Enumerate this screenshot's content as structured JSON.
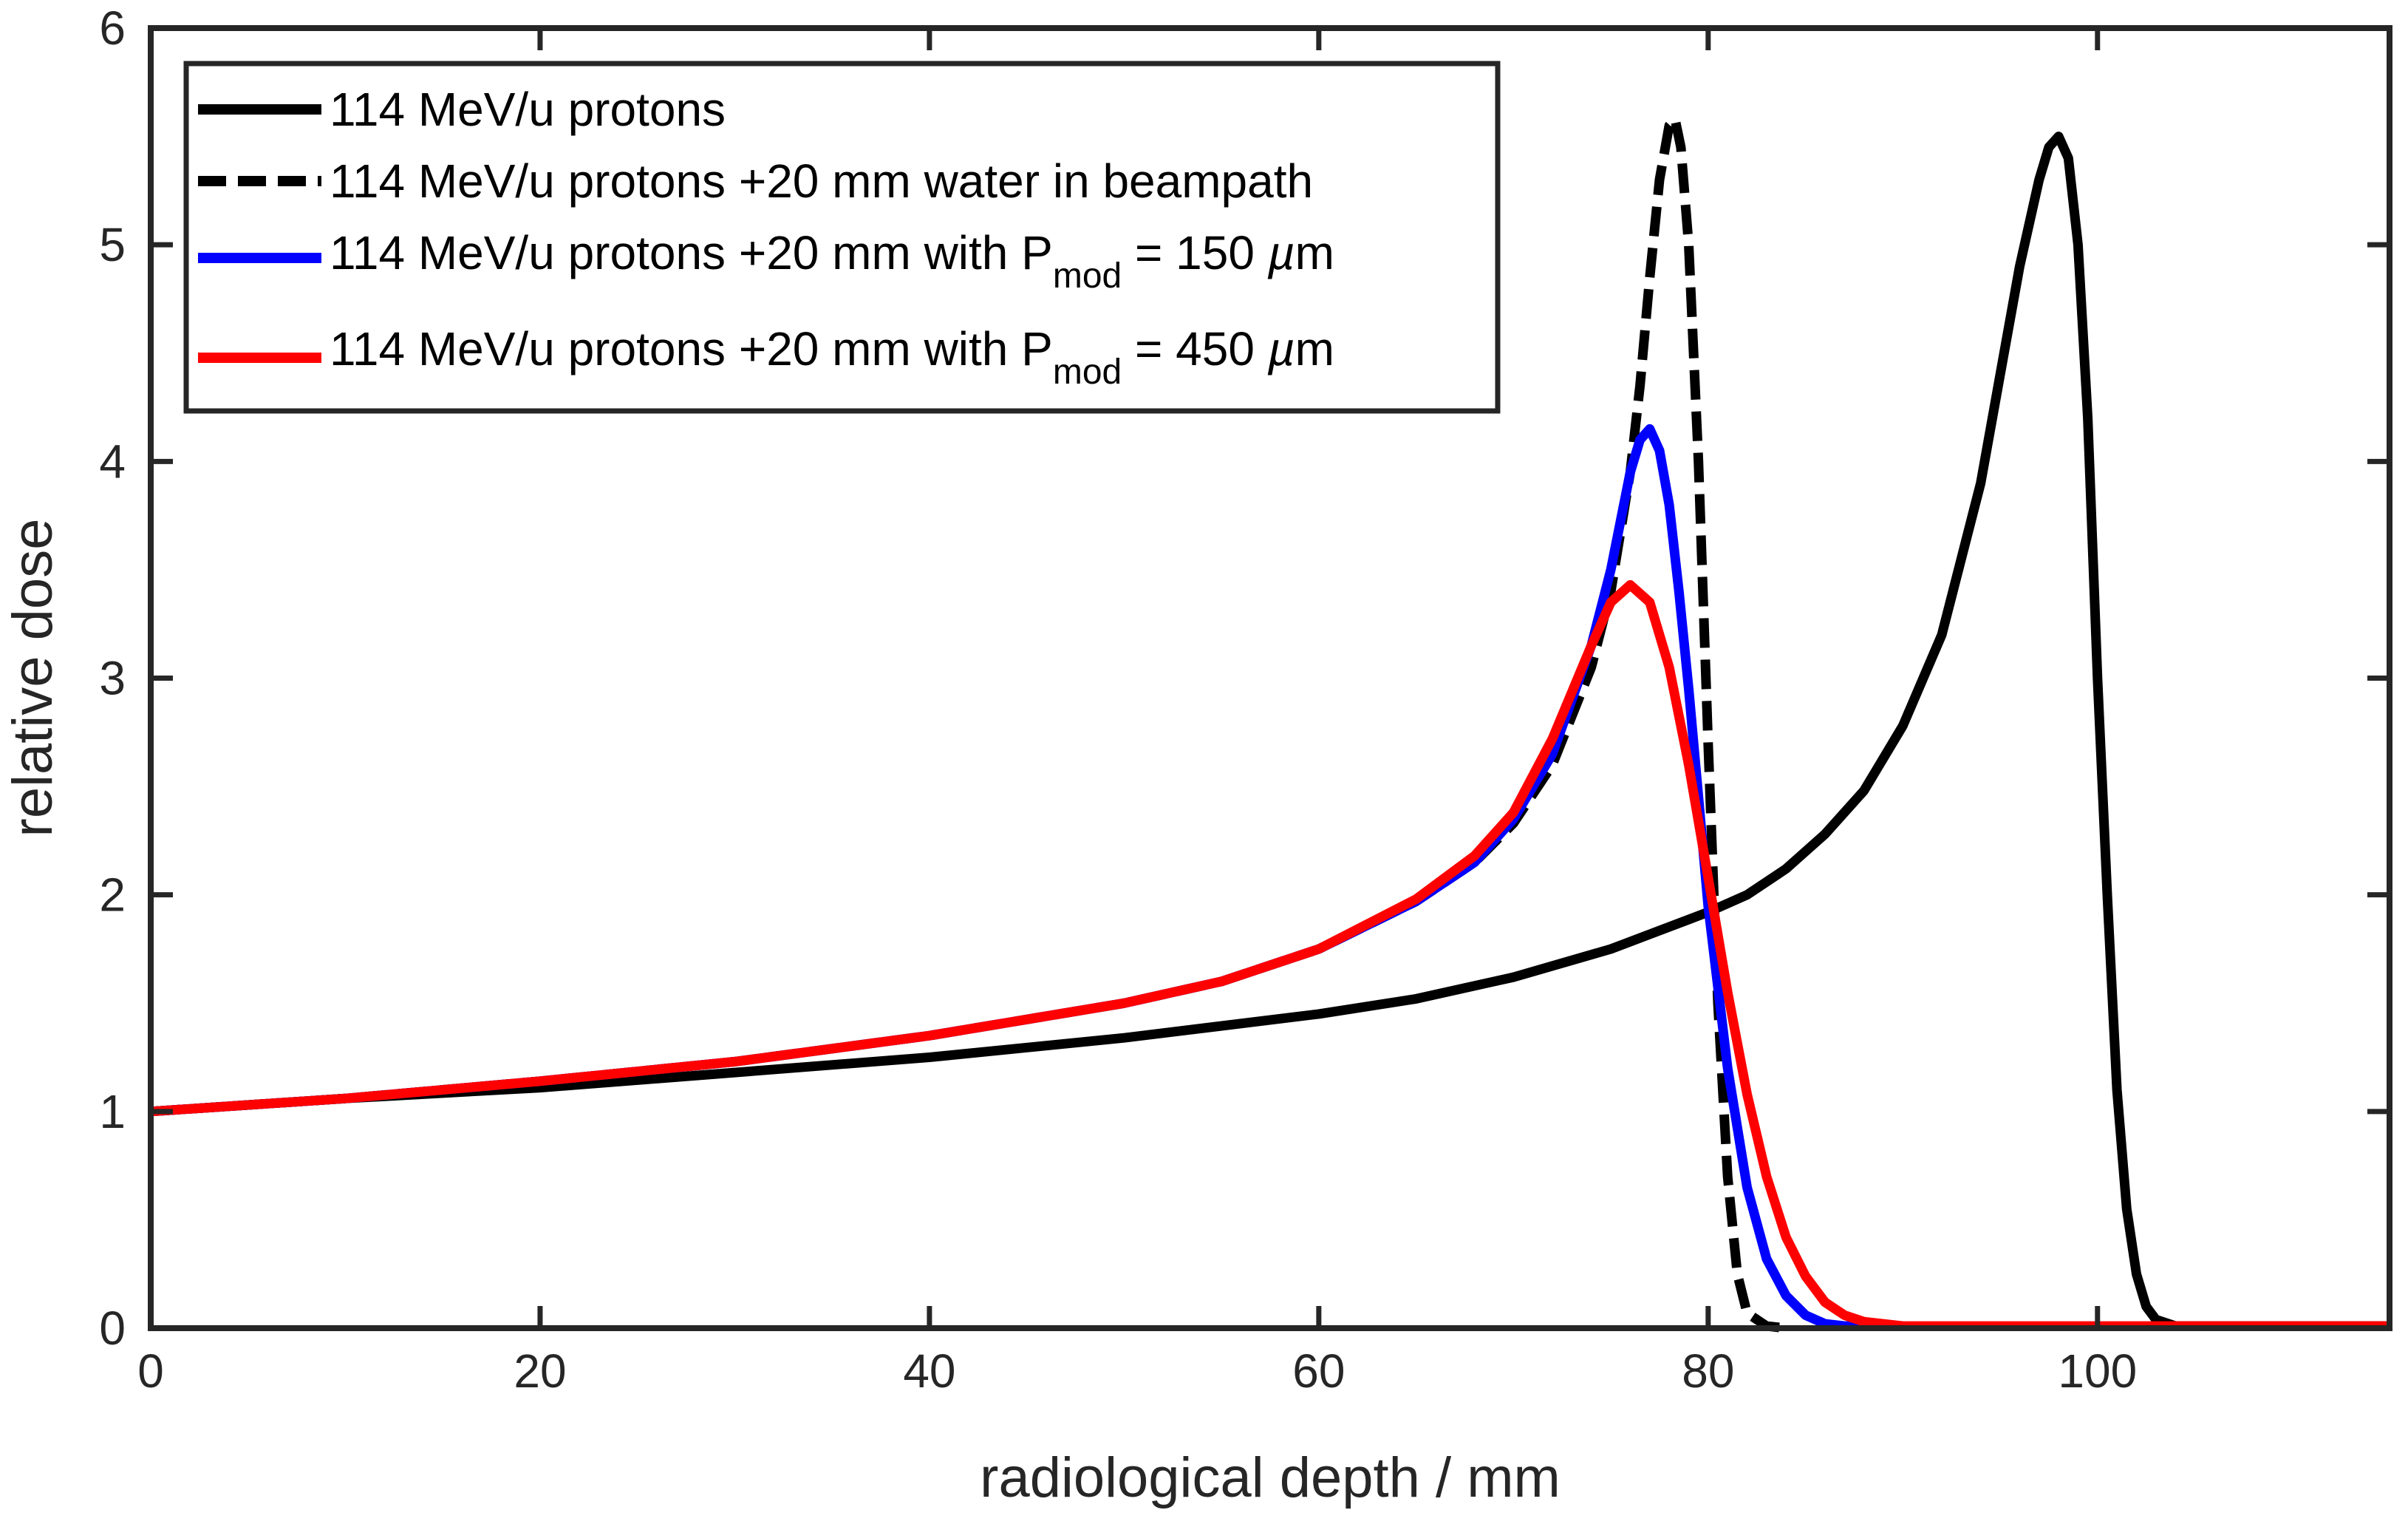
{
  "chart_data": {
    "type": "line",
    "title": "",
    "xlabel": "radiological depth / mm",
    "ylabel": "relative dose",
    "xlim": [
      0,
      115
    ],
    "ylim": [
      0,
      6
    ],
    "xticks": [
      "0",
      "20",
      "40",
      "60",
      "80",
      "100"
    ],
    "yticks": [
      "0",
      "1",
      "2",
      "3",
      "4",
      "5",
      "6"
    ],
    "grid": false,
    "legend_position": "top-left",
    "series": [
      {
        "name": "114 MeV/u protons",
        "color": "#000000",
        "style": "solid",
        "x": [
          0,
          10,
          20,
          30,
          40,
          50,
          60,
          65,
          70,
          75,
          80,
          82,
          84,
          86,
          88,
          90,
          92,
          94,
          95,
          96,
          97,
          97.5,
          98,
          98.5,
          99,
          99.5,
          100,
          100.5,
          101,
          101.5,
          102,
          102.5,
          103,
          104,
          106,
          110,
          115
        ],
        "y": [
          1.0,
          1.06,
          1.11,
          1.18,
          1.25,
          1.34,
          1.45,
          1.52,
          1.62,
          1.75,
          1.92,
          2.0,
          2.12,
          2.28,
          2.48,
          2.78,
          3.2,
          3.9,
          4.4,
          4.9,
          5.3,
          5.45,
          5.5,
          5.4,
          5.0,
          4.2,
          3.0,
          2.0,
          1.1,
          0.55,
          0.25,
          0.1,
          0.04,
          0.01,
          0.01,
          0.01,
          0.01
        ]
      },
      {
        "name": "114 MeV/u protons +20 mm water in beampath",
        "color": "#000000",
        "style": "dashed",
        "x": [
          0,
          10,
          20,
          30,
          40,
          50,
          55,
          60,
          65,
          68,
          70,
          72,
          74,
          75,
          76,
          76.5,
          77,
          77.5,
          78,
          78.3,
          78.6,
          79,
          79.5,
          80,
          80.5,
          81,
          81.5,
          82,
          83,
          84
        ],
        "y": [
          1.0,
          1.06,
          1.14,
          1.23,
          1.35,
          1.5,
          1.6,
          1.75,
          1.97,
          2.15,
          2.33,
          2.6,
          3.05,
          3.4,
          3.95,
          4.35,
          4.85,
          5.3,
          5.55,
          5.58,
          5.45,
          5.0,
          4.0,
          2.7,
          1.5,
          0.7,
          0.25,
          0.07,
          0.01,
          0.0
        ]
      },
      {
        "name": "114 MeV/u protons +20 mm with P_mod = 150 µm",
        "color": "#0000ff",
        "style": "solid",
        "x": [
          0,
          10,
          20,
          30,
          40,
          50,
          55,
          60,
          65,
          68,
          70,
          72,
          74,
          75,
          76,
          76.5,
          77,
          77.5,
          78,
          78.5,
          79,
          79.5,
          80,
          81,
          82,
          83,
          84,
          85,
          86,
          87,
          88
        ],
        "y": [
          1.0,
          1.06,
          1.14,
          1.23,
          1.35,
          1.5,
          1.6,
          1.75,
          1.97,
          2.15,
          2.35,
          2.65,
          3.15,
          3.5,
          3.95,
          4.1,
          4.15,
          4.05,
          3.8,
          3.4,
          2.95,
          2.45,
          1.95,
          1.2,
          0.65,
          0.32,
          0.15,
          0.06,
          0.02,
          0.01,
          0.01
        ]
      },
      {
        "name": "114 MeV/u protons +20 mm with P_mod = 450 µm",
        "color": "#ff0000",
        "style": "solid",
        "x": [
          0,
          10,
          20,
          30,
          40,
          50,
          55,
          60,
          65,
          68,
          70,
          72,
          74,
          75,
          76,
          77,
          78,
          79,
          80,
          81,
          82,
          83,
          84,
          85,
          86,
          87,
          88,
          90,
          95,
          100,
          110,
          115
        ],
        "y": [
          1.0,
          1.06,
          1.14,
          1.23,
          1.35,
          1.5,
          1.6,
          1.75,
          1.98,
          2.18,
          2.38,
          2.72,
          3.15,
          3.35,
          3.43,
          3.35,
          3.05,
          2.6,
          2.08,
          1.55,
          1.08,
          0.7,
          0.42,
          0.24,
          0.12,
          0.06,
          0.03,
          0.01,
          0.01,
          0.01,
          0.01,
          0.01
        ]
      }
    ]
  },
  "legend": {
    "entries": [
      {
        "text": "114 MeV/u protons"
      },
      {
        "text": "114 MeV/u protons +20 mm water in beampath"
      },
      {
        "text_main": "114 MeV/u protons +20 mm with P",
        "sub": "mod",
        "tail": " = 150 ",
        "unit_greek": "µ",
        "unit_tail": "m"
      },
      {
        "text_main": "114 MeV/u protons +20 mm with P",
        "sub": "mod",
        "tail": " = 450 ",
        "unit_greek": "µ",
        "unit_tail": "m"
      }
    ]
  }
}
